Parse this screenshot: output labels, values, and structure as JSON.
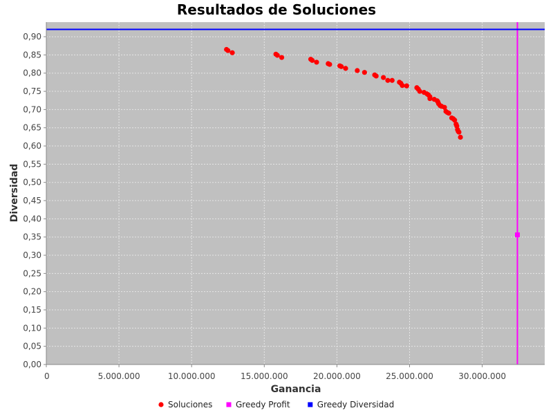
{
  "chart_data": {
    "type": "scatter",
    "title": "Resultados de Soluciones",
    "xlabel": "Ganancia",
    "ylabel": "Diversidad",
    "xlim": [
      0,
      34300000
    ],
    "ylim": [
      0,
      0.94
    ],
    "x_ticks": [
      0,
      5000000,
      10000000,
      15000000,
      20000000,
      25000000,
      30000000
    ],
    "x_tick_labels": [
      "0",
      "5.000.000",
      "10.000.000",
      "15.000.000",
      "20.000.000",
      "25.000.000",
      "30.000.000"
    ],
    "y_ticks": [
      0,
      0.05,
      0.1,
      0.15,
      0.2,
      0.25,
      0.3,
      0.35,
      0.4,
      0.45,
      0.5,
      0.55,
      0.6,
      0.65,
      0.7,
      0.75,
      0.8,
      0.85,
      0.9
    ],
    "y_tick_labels": [
      "0,00",
      "0,05",
      "0,10",
      "0,15",
      "0,20",
      "0,25",
      "0,30",
      "0,35",
      "0,40",
      "0,45",
      "0,50",
      "0,55",
      "0,60",
      "0,65",
      "0,70",
      "0,75",
      "0,80",
      "0,85",
      "0,90"
    ],
    "grid": true,
    "legend_position": "bottom",
    "colors": {
      "plot_bg": "#c0c0c0",
      "grid": "#e6e6e6",
      "soluciones": "#ff0000",
      "greedy_profit": "#ff00ff",
      "greedy_diversidad": "#0000ff"
    },
    "series": [
      {
        "name": "Soluciones",
        "marker": "circle",
        "color": "#ff0000",
        "points": [
          [
            12400000,
            0.865
          ],
          [
            12500000,
            0.862
          ],
          [
            12800000,
            0.856
          ],
          [
            15800000,
            0.852
          ],
          [
            15900000,
            0.849
          ],
          [
            16200000,
            0.843
          ],
          [
            18200000,
            0.838
          ],
          [
            18300000,
            0.835
          ],
          [
            18600000,
            0.83
          ],
          [
            19400000,
            0.826
          ],
          [
            19500000,
            0.824
          ],
          [
            20200000,
            0.82
          ],
          [
            20300000,
            0.818
          ],
          [
            20600000,
            0.813
          ],
          [
            21400000,
            0.807
          ],
          [
            21900000,
            0.802
          ],
          [
            22600000,
            0.795
          ],
          [
            22700000,
            0.792
          ],
          [
            23200000,
            0.788
          ],
          [
            23500000,
            0.78
          ],
          [
            23800000,
            0.78
          ],
          [
            24300000,
            0.775
          ],
          [
            24400000,
            0.772
          ],
          [
            24500000,
            0.766
          ],
          [
            24800000,
            0.765
          ],
          [
            25500000,
            0.76
          ],
          [
            25600000,
            0.756
          ],
          [
            25700000,
            0.75
          ],
          [
            26000000,
            0.747
          ],
          [
            26200000,
            0.743
          ],
          [
            26300000,
            0.74
          ],
          [
            26400000,
            0.735
          ],
          [
            26400000,
            0.73
          ],
          [
            26700000,
            0.728
          ],
          [
            26900000,
            0.724
          ],
          [
            26950000,
            0.721
          ],
          [
            27000000,
            0.716
          ],
          [
            27100000,
            0.711
          ],
          [
            27200000,
            0.709
          ],
          [
            27400000,
            0.706
          ],
          [
            27500000,
            0.695
          ],
          [
            27600000,
            0.692
          ],
          [
            27700000,
            0.69
          ],
          [
            27900000,
            0.677
          ],
          [
            28000000,
            0.675
          ],
          [
            28100000,
            0.671
          ],
          [
            28200000,
            0.66
          ],
          [
            28250000,
            0.655
          ],
          [
            28300000,
            0.645
          ],
          [
            28350000,
            0.64
          ],
          [
            28400000,
            0.638
          ],
          [
            28500000,
            0.624
          ]
        ]
      },
      {
        "name": "Greedy Profit",
        "marker": "square",
        "color": "#ff00ff",
        "points": [
          [
            32420000,
            0.356
          ]
        ],
        "line": {
          "orientation": "vertical",
          "value": 32420000
        }
      },
      {
        "name": "Greedy Diversidad",
        "marker": "square",
        "color": "#0000ff",
        "points": [],
        "line": {
          "orientation": "horizontal",
          "value": 0.92
        }
      }
    ]
  }
}
